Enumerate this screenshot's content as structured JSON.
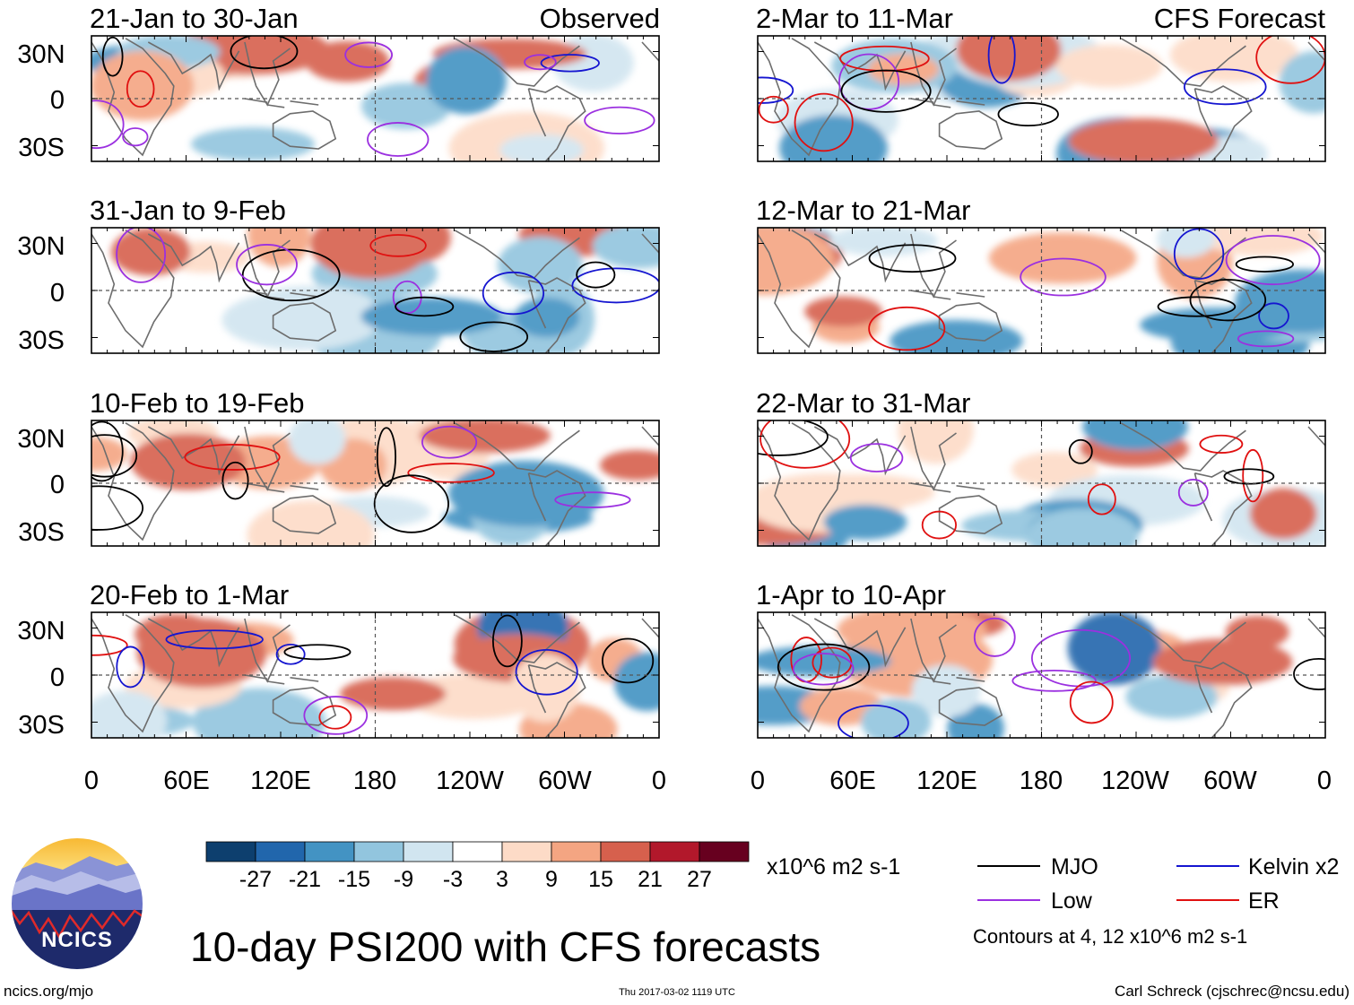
{
  "title": "10-day PSI200 with CFS forecasts",
  "website": "ncics.org/mjo",
  "timestamp": "Thu 2017-03-02 1119 UTC",
  "author": "Carl Schreck (cjschrec@ncsu.edu)",
  "logo_text": "NCICS",
  "observed_label": "Observed",
  "forecast_label": "CFS Forecast",
  "panels": {
    "observed": [
      "21-Jan to 30-Jan",
      "31-Jan to 9-Feb",
      "10-Feb to 19-Feb",
      "20-Feb to 1-Mar"
    ],
    "forecast": [
      "2-Mar to 11-Mar",
      "12-Mar to 21-Mar",
      "22-Mar to 31-Mar",
      "1-Apr to 10-Apr"
    ]
  },
  "lat_labels": [
    "30N",
    "0",
    "30S"
  ],
  "lon_labels": [
    "0",
    "60E",
    "120E",
    "180",
    "120W",
    "60W",
    "0"
  ],
  "colorbar": {
    "units": "x10^6 m2 s-1",
    "ticks": [
      "-27",
      "-21",
      "-15",
      "-9",
      "-3",
      "3",
      "9",
      "15",
      "21",
      "27"
    ],
    "colors": [
      "#0d3f6e",
      "#2166ac",
      "#4393c3",
      "#92c5de",
      "#d1e5f0",
      "#ffffff",
      "#fddbc7",
      "#f4a582",
      "#d6604d",
      "#b2182b",
      "#67001f"
    ]
  },
  "legend": {
    "items": [
      {
        "label": "MJO",
        "color": "#000000"
      },
      {
        "label": "Kelvin x2",
        "color": "#1515d0"
      },
      {
        "label": "Low",
        "color": "#9b30e0"
      },
      {
        "label": "ER",
        "color": "#e01010"
      }
    ],
    "contours_note": "Contours at 4, 12 x10^6 m2 s-1"
  }
}
